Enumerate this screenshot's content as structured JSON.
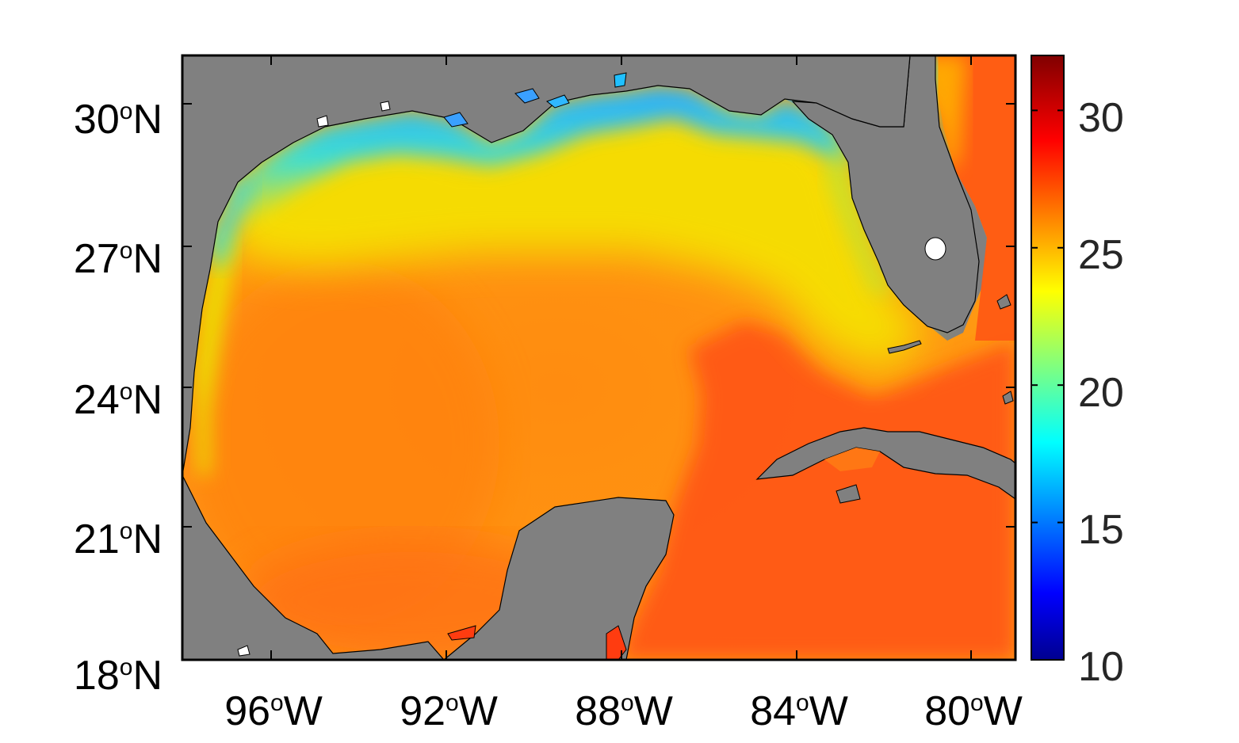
{
  "map": {
    "lat_ticks": [
      {
        "deg": "30",
        "sup": "o",
        "hemi": "N"
      },
      {
        "deg": "27",
        "sup": "o",
        "hemi": "N"
      },
      {
        "deg": "24",
        "sup": "o",
        "hemi": "N"
      },
      {
        "deg": "21",
        "sup": "o",
        "hemi": "N"
      },
      {
        "deg": "18",
        "sup": "o",
        "hemi": "N"
      }
    ],
    "lon_ticks": [
      {
        "deg": "96",
        "sup": "o",
        "hemi": "W"
      },
      {
        "deg": "92",
        "sup": "o",
        "hemi": "W"
      },
      {
        "deg": "88",
        "sup": "o",
        "hemi": "W"
      },
      {
        "deg": "84",
        "sup": "o",
        "hemi": "W"
      },
      {
        "deg": "80",
        "sup": "o",
        "hemi": "W"
      }
    ],
    "land_color": "#808080",
    "lake_color": "#ffffff"
  },
  "colorbar": {
    "min": 10,
    "max": 32,
    "ticks": [
      "30",
      "25",
      "20",
      "15",
      "10"
    ],
    "colormap": "jet"
  }
}
